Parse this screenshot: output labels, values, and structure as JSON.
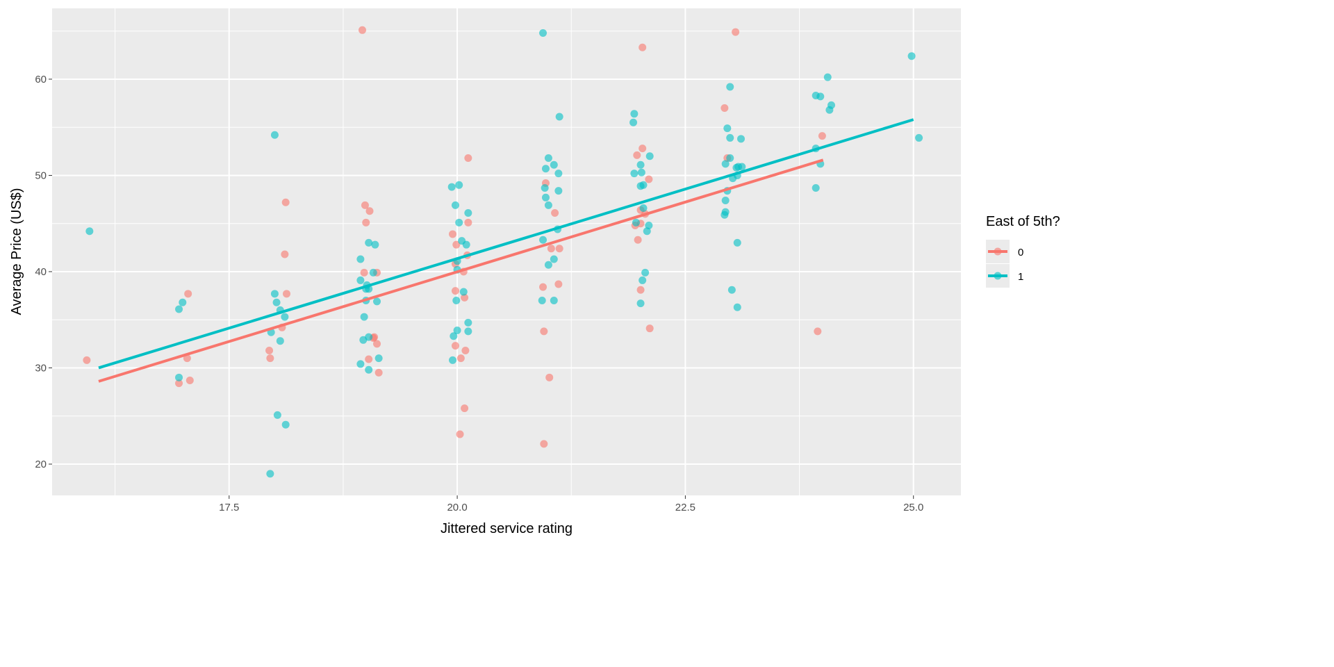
{
  "chart_data": {
    "type": "scatter",
    "xlabel": "Jittered service rating",
    "ylabel": "Average Price (US$)",
    "xlim": [
      15.56,
      25.52
    ],
    "ylim": [
      16.75,
      67.36
    ],
    "xticks": [
      17.5,
      20.0,
      22.5,
      25.0
    ],
    "xtick_labels": [
      "17.5",
      "20.0",
      "22.5",
      "25.0"
    ],
    "yticks": [
      20,
      30,
      40,
      50,
      60
    ],
    "ytick_labels": [
      "20",
      "30",
      "40",
      "50",
      "60"
    ],
    "grid": true,
    "legend": {
      "title": "East of 5th?",
      "placement": "right"
    },
    "series": [
      {
        "name": "0",
        "color": "#F8766D",
        "points": [
          [
            15.94,
            30.8
          ],
          [
            17.05,
            37.7
          ],
          [
            17.04,
            31.0
          ],
          [
            16.95,
            28.4
          ],
          [
            17.07,
            28.7
          ],
          [
            17.94,
            31.8
          ],
          [
            17.95,
            31.0
          ],
          [
            18.08,
            34.2
          ],
          [
            18.12,
            47.2
          ],
          [
            18.11,
            41.8
          ],
          [
            18.13,
            37.7
          ],
          [
            18.96,
            65.1
          ],
          [
            18.99,
            46.9
          ],
          [
            19.04,
            46.3
          ],
          [
            19.0,
            45.1
          ],
          [
            18.98,
            39.9
          ],
          [
            19.12,
            39.9
          ],
          [
            19.09,
            33.2
          ],
          [
            19.12,
            32.5
          ],
          [
            19.08,
            33.1
          ],
          [
            19.03,
            30.9
          ],
          [
            19.14,
            29.5
          ],
          [
            19.95,
            43.9
          ],
          [
            19.99,
            42.8
          ],
          [
            19.98,
            40.8
          ],
          [
            20.07,
            40.0
          ],
          [
            20.12,
            45.1
          ],
          [
            20.11,
            41.7
          ],
          [
            19.98,
            38.0
          ],
          [
            20.08,
            37.3
          ],
          [
            19.98,
            32.3
          ],
          [
            20.09,
            31.8
          ],
          [
            20.04,
            31.0
          ],
          [
            20.08,
            25.8
          ],
          [
            20.03,
            23.1
          ],
          [
            20.12,
            51.8
          ],
          [
            20.97,
            49.2
          ],
          [
            21.07,
            46.1
          ],
          [
            21.03,
            42.4
          ],
          [
            21.12,
            42.4
          ],
          [
            21.11,
            38.7
          ],
          [
            20.94,
            38.4
          ],
          [
            20.95,
            33.8
          ],
          [
            21.01,
            29.0
          ],
          [
            20.95,
            22.1
          ],
          [
            22.03,
            63.3
          ],
          [
            22.03,
            52.8
          ],
          [
            21.97,
            52.1
          ],
          [
            22.1,
            49.6
          ],
          [
            22.01,
            46.4
          ],
          [
            22.06,
            46.0
          ],
          [
            21.95,
            44.8
          ],
          [
            22.01,
            45.0
          ],
          [
            21.98,
            43.3
          ],
          [
            22.01,
            38.1
          ],
          [
            22.11,
            34.1
          ],
          [
            22.93,
            57.0
          ],
          [
            23.05,
            64.9
          ],
          [
            22.96,
            51.8
          ],
          [
            24.0,
            54.1
          ],
          [
            23.95,
            33.8
          ]
        ],
        "fit": [
          [
            16.07,
            28.6
          ],
          [
            24.01,
            51.6
          ]
        ]
      },
      {
        "name": "1",
        "color": "#00BFC4",
        "points": [
          [
            15.97,
            44.2
          ],
          [
            16.95,
            29.0
          ],
          [
            16.95,
            36.1
          ],
          [
            16.99,
            36.8
          ],
          [
            18.0,
            54.2
          ],
          [
            18.0,
            37.7
          ],
          [
            18.02,
            36.8
          ],
          [
            18.06,
            36.0
          ],
          [
            18.11,
            35.3
          ],
          [
            17.96,
            33.7
          ],
          [
            18.06,
            32.8
          ],
          [
            18.03,
            25.1
          ],
          [
            18.12,
            24.1
          ],
          [
            17.95,
            19.0
          ],
          [
            19.03,
            43.0
          ],
          [
            19.1,
            42.8
          ],
          [
            18.94,
            41.3
          ],
          [
            19.08,
            39.9
          ],
          [
            18.94,
            39.1
          ],
          [
            19.01,
            38.6
          ],
          [
            19.0,
            38.2
          ],
          [
            19.03,
            38.2
          ],
          [
            19.0,
            37.0
          ],
          [
            19.12,
            36.9
          ],
          [
            18.98,
            35.3
          ],
          [
            18.97,
            32.9
          ],
          [
            19.03,
            33.2
          ],
          [
            19.14,
            31.0
          ],
          [
            18.94,
            30.4
          ],
          [
            19.03,
            29.8
          ],
          [
            19.94,
            48.8
          ],
          [
            20.02,
            49.0
          ],
          [
            19.98,
            46.9
          ],
          [
            20.02,
            45.1
          ],
          [
            20.12,
            46.1
          ],
          [
            20.05,
            43.2
          ],
          [
            20.1,
            42.8
          ],
          [
            20.0,
            41.1
          ],
          [
            20.0,
            40.2
          ],
          [
            20.07,
            37.9
          ],
          [
            19.99,
            37.0
          ],
          [
            20.12,
            34.7
          ],
          [
            20.12,
            33.8
          ],
          [
            20.0,
            33.9
          ],
          [
            19.96,
            33.3
          ],
          [
            19.95,
            30.8
          ],
          [
            20.94,
            64.8
          ],
          [
            21.12,
            56.1
          ],
          [
            21.0,
            51.8
          ],
          [
            21.06,
            51.1
          ],
          [
            20.97,
            50.7
          ],
          [
            21.11,
            50.2
          ],
          [
            21.11,
            48.4
          ],
          [
            20.96,
            48.7
          ],
          [
            20.97,
            47.7
          ],
          [
            21.0,
            46.9
          ],
          [
            21.1,
            44.4
          ],
          [
            20.94,
            43.3
          ],
          [
            21.06,
            41.3
          ],
          [
            21.0,
            40.7
          ],
          [
            20.93,
            37.0
          ],
          [
            21.06,
            37.0
          ],
          [
            21.94,
            56.4
          ],
          [
            21.93,
            55.5
          ],
          [
            22.01,
            51.1
          ],
          [
            22.11,
            52.0
          ],
          [
            21.94,
            50.2
          ],
          [
            22.02,
            50.3
          ],
          [
            22.01,
            48.9
          ],
          [
            22.04,
            49.0
          ],
          [
            22.04,
            46.6
          ],
          [
            22.1,
            44.8
          ],
          [
            21.96,
            45.1
          ],
          [
            22.08,
            44.2
          ],
          [
            22.06,
            39.9
          ],
          [
            22.03,
            39.1
          ],
          [
            22.01,
            36.7
          ],
          [
            22.99,
            59.2
          ],
          [
            22.96,
            54.9
          ],
          [
            22.99,
            53.9
          ],
          [
            23.11,
            53.8
          ],
          [
            22.99,
            51.8
          ],
          [
            22.94,
            51.2
          ],
          [
            23.02,
            49.7
          ],
          [
            23.07,
            50.0
          ],
          [
            23.08,
            50.9
          ],
          [
            23.12,
            50.9
          ],
          [
            23.06,
            50.8
          ],
          [
            22.96,
            48.4
          ],
          [
            22.94,
            47.4
          ],
          [
            22.94,
            46.2
          ],
          [
            22.93,
            45.9
          ],
          [
            23.07,
            43.0
          ],
          [
            23.01,
            38.1
          ],
          [
            23.07,
            36.3
          ],
          [
            24.06,
            60.2
          ],
          [
            23.93,
            58.3
          ],
          [
            23.98,
            58.2
          ],
          [
            24.1,
            57.3
          ],
          [
            24.08,
            56.8
          ],
          [
            23.93,
            52.8
          ],
          [
            23.98,
            51.2
          ],
          [
            23.93,
            48.7
          ],
          [
            24.98,
            62.4
          ],
          [
            25.06,
            53.9
          ]
        ],
        "fit": [
          [
            16.07,
            30.0
          ],
          [
            25.0,
            55.8
          ]
        ]
      }
    ]
  }
}
